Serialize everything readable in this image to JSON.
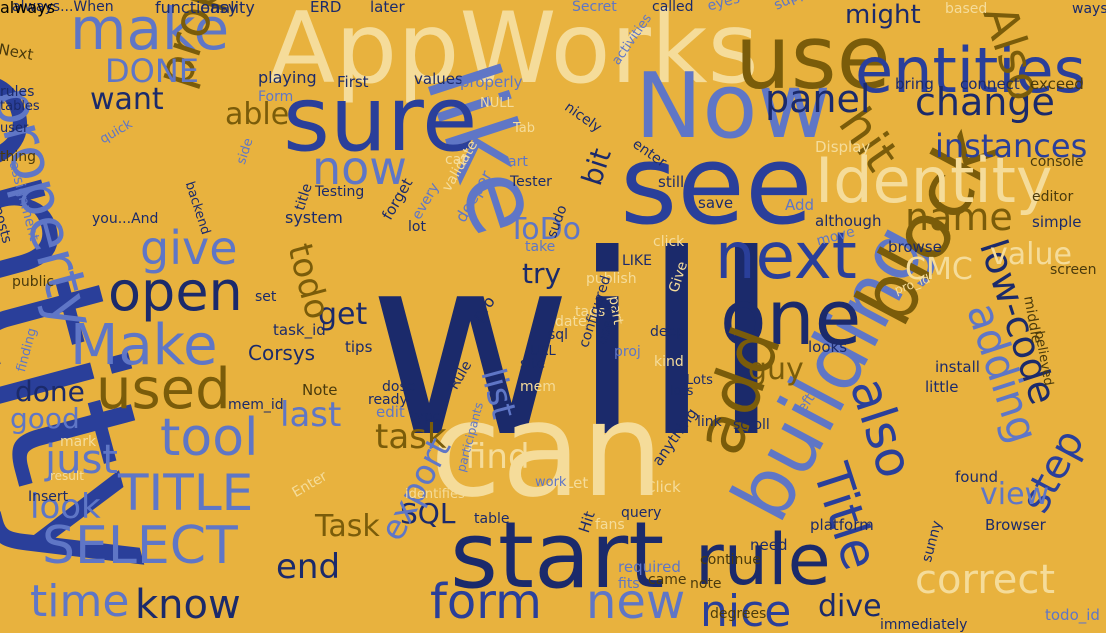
{
  "palette": {
    "background": "#e8b23e",
    "navy": "#1b2a6b",
    "royal": "#2a3f9a",
    "periwinkle": "#5f76c6",
    "cream": "#f5dc9a",
    "olive": "#7a5c0a",
    "brown": "#4a3a0c"
  },
  "words": [
    {
      "text": "will",
      "color": "navy"
    },
    {
      "text": "entity",
      "color": "royal"
    },
    {
      "text": "can",
      "color": "cream"
    },
    {
      "text": "AppWorks",
      "color": "cream"
    },
    {
      "text": "see",
      "color": "royal"
    },
    {
      "text": "like",
      "color": "periwinkle"
    },
    {
      "text": "start",
      "color": "navy"
    },
    {
      "text": "sure",
      "color": "royal"
    },
    {
      "text": "Now",
      "color": "periwinkle"
    },
    {
      "text": "use",
      "color": "olive"
    },
    {
      "text": "building",
      "color": "periwinkle"
    },
    {
      "text": "block",
      "color": "olive"
    },
    {
      "text": "one",
      "color": "navy"
    },
    {
      "text": "rule",
      "color": "navy"
    },
    {
      "text": "entities",
      "color": "royal"
    },
    {
      "text": "Identity",
      "color": "cream"
    },
    {
      "text": "next",
      "color": "royal"
    },
    {
      "text": "add",
      "color": "olive"
    },
    {
      "text": "form",
      "color": "royal"
    },
    {
      "text": "new",
      "color": "periwinkle"
    },
    {
      "text": "make",
      "color": "periwinkle"
    },
    {
      "text": "property",
      "color": "periwinkle"
    },
    {
      "text": "proper",
      "color": "olive"
    },
    {
      "text": "open",
      "color": "navy"
    },
    {
      "text": "Make",
      "color": "periwinkle"
    },
    {
      "text": "used",
      "color": "olive"
    },
    {
      "text": "tool",
      "color": "periwinkle"
    },
    {
      "text": "TITLE",
      "color": "periwinkle"
    },
    {
      "text": "SELECT",
      "color": "periwinkle"
    },
    {
      "text": "time",
      "color": "periwinkle"
    },
    {
      "text": "know",
      "color": "navy"
    },
    {
      "text": "nice",
      "color": "royal"
    },
    {
      "text": "correct",
      "color": "cream"
    },
    {
      "text": "also",
      "color": "royal"
    },
    {
      "text": "Title",
      "color": "royal"
    },
    {
      "text": "low-code",
      "color": "navy"
    },
    {
      "text": "adding",
      "color": "periwinkle"
    },
    {
      "text": "change",
      "color": "navy"
    },
    {
      "text": "hit",
      "color": "olive"
    },
    {
      "text": "panel",
      "color": "navy"
    },
    {
      "text": "Also",
      "color": "olive"
    },
    {
      "text": "instances",
      "color": "royal"
    },
    {
      "text": "name",
      "color": "olive"
    },
    {
      "text": "value",
      "color": "cream"
    },
    {
      "text": "CMC",
      "color": "cream"
    },
    {
      "text": "step",
      "color": "royal"
    },
    {
      "text": "view",
      "color": "periwinkle"
    },
    {
      "text": "give",
      "color": "periwinkle"
    },
    {
      "text": "now",
      "color": "periwinkle"
    },
    {
      "text": "able",
      "color": "olive"
    },
    {
      "text": "want",
      "color": "navy"
    },
    {
      "text": "DONE",
      "color": "periwinkle"
    },
    {
      "text": "get",
      "color": "navy"
    },
    {
      "text": "todo",
      "color": "olive"
    },
    {
      "text": "task",
      "color": "olive"
    },
    {
      "text": "last",
      "color": "periwinkle"
    },
    {
      "text": "list",
      "color": "periwinkle"
    },
    {
      "text": "guy",
      "color": "olive"
    },
    {
      "text": "find",
      "color": "cream"
    },
    {
      "text": "SQL",
      "color": "navy"
    },
    {
      "text": "Task",
      "color": "olive"
    },
    {
      "text": "export",
      "color": "periwinkle"
    },
    {
      "text": "end",
      "color": "navy"
    },
    {
      "text": "dive",
      "color": "navy"
    },
    {
      "text": "just",
      "color": "periwinkle"
    },
    {
      "text": "look",
      "color": "periwinkle"
    },
    {
      "text": "done",
      "color": "navy"
    },
    {
      "text": "good",
      "color": "periwinkle"
    },
    {
      "text": "ToDo",
      "color": "periwinkle"
    },
    {
      "text": "bit",
      "color": "navy"
    },
    {
      "text": "try",
      "color": "navy"
    },
    {
      "text": "might",
      "color": "navy"
    },
    {
      "text": "Corsys",
      "color": "navy"
    },
    {
      "text": "Testing",
      "color": "navy"
    },
    {
      "text": "Tester",
      "color": "navy"
    },
    {
      "text": "system",
      "color": "navy"
    },
    {
      "text": "First",
      "color": "navy"
    },
    {
      "text": "values",
      "color": "navy"
    },
    {
      "text": "playing",
      "color": "navy"
    },
    {
      "text": "task_id",
      "color": "navy"
    },
    {
      "text": "mem_id",
      "color": "navy"
    },
    {
      "text": "tips",
      "color": "navy"
    },
    {
      "text": "Note",
      "color": "brown"
    },
    {
      "text": "looks",
      "color": "navy"
    },
    {
      "text": "install",
      "color": "navy"
    },
    {
      "text": "little",
      "color": "navy"
    },
    {
      "text": "found",
      "color": "navy"
    },
    {
      "text": "platform",
      "color": "navy"
    },
    {
      "text": "Browser",
      "color": "navy"
    },
    {
      "text": "immediately",
      "color": "navy"
    },
    {
      "text": "need",
      "color": "navy"
    },
    {
      "text": "table",
      "color": "navy"
    },
    {
      "text": "query",
      "color": "navy"
    },
    {
      "text": "simple",
      "color": "navy"
    },
    {
      "text": "browse",
      "color": "navy"
    },
    {
      "text": "although",
      "color": "navy"
    },
    {
      "text": "nicely",
      "color": "navy"
    },
    {
      "text": "still",
      "color": "navy"
    },
    {
      "text": "save",
      "color": "navy"
    },
    {
      "text": "Add",
      "color": "periwinkle"
    },
    {
      "text": "bring",
      "color": "navy"
    },
    {
      "text": "connect",
      "color": "navy"
    },
    {
      "text": "exceed",
      "color": "brown"
    },
    {
      "text": "editor",
      "color": "brown"
    },
    {
      "text": "console",
      "color": "brown"
    },
    {
      "text": "screen",
      "color": "brown"
    },
    {
      "text": "pro_id",
      "color": "cream"
    },
    {
      "text": "middle",
      "color": "brown"
    },
    {
      "text": "believed",
      "color": "brown"
    },
    {
      "text": "todo_id",
      "color": "periwinkle"
    },
    {
      "text": "degrees",
      "color": "brown"
    },
    {
      "text": "continue",
      "color": "brown"
    },
    {
      "text": "came",
      "color": "brown"
    },
    {
      "text": "note",
      "color": "brown"
    },
    {
      "text": "Insert",
      "color": "navy"
    },
    {
      "text": "participants",
      "color": "periwinkle"
    },
    {
      "text": "mark",
      "color": "cream"
    },
    {
      "text": "result",
      "color": "cream"
    },
    {
      "text": "public",
      "color": "brown"
    },
    {
      "text": "finding",
      "color": "periwinkle"
    },
    {
      "text": "posts",
      "color": "navy"
    },
    {
      "text": "assignment",
      "color": "periwinkle"
    },
    {
      "text": "you...And",
      "color": "navy"
    },
    {
      "text": "backend",
      "color": "navy"
    },
    {
      "text": "thing",
      "color": "brown"
    },
    {
      "text": "user",
      "color": "navy"
    },
    {
      "text": "rules",
      "color": "navy"
    },
    {
      "text": "tables",
      "color": "navy"
    },
    {
      "text": "Next",
      "color": "brown"
    },
    {
      "text": "always...When",
      "color": "navy"
    },
    {
      "text": "functionality",
      "color": "navy"
    },
    {
      "text": "easy",
      "color": "navy"
    },
    {
      "text": "ERD",
      "color": "navy"
    },
    {
      "text": "later",
      "color": "navy"
    },
    {
      "text": "Secret",
      "color": "periwinkle"
    },
    {
      "text": "called",
      "color": "navy"
    },
    {
      "text": "eyes",
      "color": "periwinkle"
    },
    {
      "text": "suppose",
      "color": "periwinkle"
    },
    {
      "text": "based",
      "color": "cream"
    },
    {
      "text": "ways",
      "color": "navy"
    },
    {
      "text": "properly",
      "color": "periwinkle"
    },
    {
      "text": "NULL",
      "color": "cream"
    },
    {
      "text": "Form",
      "color": "periwinkle"
    },
    {
      "text": "activities",
      "color": "periwinkle"
    },
    {
      "text": "quick",
      "color": "periwinkle"
    },
    {
      "text": "Tab",
      "color": "cream"
    },
    {
      "text": "cat",
      "color": "cream"
    },
    {
      "text": "art",
      "color": "periwinkle"
    },
    {
      "text": "Display",
      "color": "cream"
    },
    {
      "text": "enter",
      "color": "navy"
    },
    {
      "text": "validate",
      "color": "cream"
    },
    {
      "text": "every",
      "color": "periwinkle"
    },
    {
      "text": "title",
      "color": "navy"
    },
    {
      "text": "date",
      "color": "cream"
    },
    {
      "text": "side",
      "color": "periwinkle"
    },
    {
      "text": "lot",
      "color": "navy"
    },
    {
      "text": "forget",
      "color": "navy"
    },
    {
      "text": "deeper",
      "color": "periwinkle"
    },
    {
      "text": "take",
      "color": "periwinkle"
    },
    {
      "text": "sudo",
      "color": "navy"
    },
    {
      "text": "click",
      "color": "cream"
    },
    {
      "text": "move",
      "color": "periwinkle"
    },
    {
      "text": "publish",
      "color": "cream"
    },
    {
      "text": "LIKE",
      "color": "navy"
    },
    {
      "text": "part",
      "color": "cream"
    },
    {
      "text": "Give",
      "color": "cream"
    },
    {
      "text": "deep",
      "color": "navy"
    },
    {
      "text": "tags",
      "color": "cream"
    },
    {
      "text": "proj",
      "color": "periwinkle"
    },
    {
      "text": "kind",
      "color": "cream"
    },
    {
      "text": "Lots",
      "color": "navy"
    },
    {
      "text": "lots",
      "color": "navy"
    },
    {
      "text": "mem",
      "color": "cream"
    },
    {
      "text": "configured",
      "color": "navy"
    },
    {
      "text": "useful",
      "color": "navy"
    },
    {
      "text": "sql",
      "color": "navy"
    },
    {
      "text": "site",
      "color": "navy"
    },
    {
      "text": "URL",
      "color": "navy"
    },
    {
      "text": "pro",
      "color": "navy"
    },
    {
      "text": "Rule",
      "color": "navy"
    },
    {
      "text": "type",
      "color": "navy"
    },
    {
      "text": "ready",
      "color": "navy"
    },
    {
      "text": "dose",
      "color": "navy"
    },
    {
      "text": "edit",
      "color": "periwinkle"
    },
    {
      "text": "set",
      "color": "navy"
    },
    {
      "text": "Enter",
      "color": "cream"
    },
    {
      "text": "identifies",
      "color": "cream"
    },
    {
      "text": "work",
      "color": "periwinkle"
    },
    {
      "text": "Let",
      "color": "cream"
    },
    {
      "text": "Hit",
      "color": "navy"
    },
    {
      "text": "anything",
      "color": "navy"
    },
    {
      "text": "Click",
      "color": "cream"
    },
    {
      "text": "fans",
      "color": "cream"
    },
    {
      "text": "required",
      "color": "periwinkle"
    },
    {
      "text": "fits",
      "color": "periwinkle"
    },
    {
      "text": "link",
      "color": "navy"
    },
    {
      "text": "scroll",
      "color": "navy"
    },
    {
      "text": "left",
      "color": "periwinkle"
    },
    {
      "text": "sunny",
      "color": "navy"
    },
    {
      "text": "always",
      "color": "cream"
    }
  ]
}
